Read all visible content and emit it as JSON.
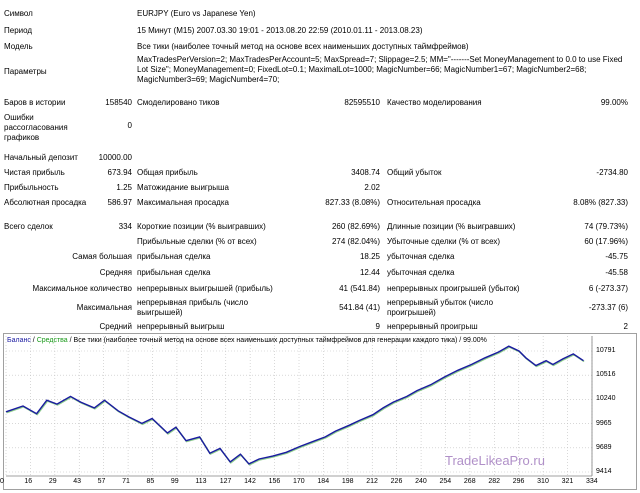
{
  "report": {
    "symbol_label": "Символ",
    "symbol_value": "EURJPY (Euro vs Japanese Yen)",
    "period_label": "Период",
    "period_value": "15 Минут (M15) 2007.03.30 19:01 - 2013.08.20 22:59 (2010.01.11 - 2013.08.23)",
    "model_label": "Модель",
    "model_value": "Все тики (наиболее точный метод на основе всех наименьших доступных таймфреймов)",
    "params_label": "Параметры",
    "params_value": "MaxTradesPerVersion=2; MaxTradesPerAccount=5; MaxSpread=7; Slippage=2.5; MM=\"-------Set MoneyManagement to 0.0 to use Fixed Lot Size\"; MoneyManagement=0; FixedLot=0.1; MaximalLot=1000; MagicNumber=66; MagicNumber1=67; MagicNumber2=68; MagicNumber3=69; MagicNumber4=70;",
    "bars_label": "Баров в истории",
    "bars_value": "158540",
    "ticks_label": "Смоделировано тиков",
    "ticks_value": "82595510",
    "quality_label": "Качество моделирования",
    "quality_value": "99.00%",
    "errors_label": "Ошибки рассогласования графиков",
    "errors_value": "0",
    "deposit_label": "Начальный депозит",
    "deposit_value": "10000.00",
    "net_label": "Чистая прибыль",
    "net_value": "673.94",
    "gross_profit_label": "Общая прибыль",
    "gross_profit_value": "3408.74",
    "gross_loss_label": "Общий убыток",
    "gross_loss_value": "-2734.80",
    "pf_label": "Прибыльность",
    "pf_value": "1.25",
    "payoff_label": "Матожидание выигрыша",
    "payoff_value": "2.02",
    "abs_dd_label": "Абсолютная просадка",
    "abs_dd_value": "586.97",
    "max_dd_label": "Максимальная просадка",
    "max_dd_value": "827.33 (8.08%)",
    "rel_dd_label": "Относительная просадка",
    "rel_dd_value": "8.08% (827.33)",
    "trades_label": "Всего сделок",
    "trades_value": "334",
    "short_label": "Короткие позиции (% выигравших)",
    "short_value": "260 (82.69%)",
    "long_label": "Длинные позиции (% выигравших)",
    "long_value": "74 (79.73%)",
    "profit_trades_label": "Прибыльные сделки (% от всех)",
    "profit_trades_value": "274 (82.04%)",
    "loss_trades_label": "Убыточные сделки (% от всех)",
    "loss_trades_value": "60 (17.96%)",
    "largest_label": "Самая большая",
    "largest_profit_label": "прибыльная сделка",
    "largest_profit_value": "18.25",
    "largest_loss_label": "убыточная сделка",
    "largest_loss_value": "-45.75",
    "average_label": "Средняя",
    "average_profit_label": "прибыльная сделка",
    "average_profit_value": "12.44",
    "average_loss_label": "убыточная сделка",
    "average_loss_value": "-45.58",
    "max_count_label": "Максимальное количество",
    "max_cons_wins_label": "непрерывных выигрышей (прибыль)",
    "max_cons_wins_value": "41 (541.84)",
    "max_cons_losses_label": "непрерывных проигрышей (убыток)",
    "max_cons_losses_value": "6 (-273.37)",
    "maximal_label": "Максимальная",
    "max_cons_profit_label": "непрерывная прибыль (число выигрышей)",
    "max_cons_profit_value": "541.84 (41)",
    "max_cons_loss_label": "непрерывный убыток (число проигрышей)",
    "max_cons_loss_value": "-273.37 (6)",
    "avg_cons_label": "Средний",
    "avg_cons_wins_label": "непрерывный выигрыш",
    "avg_cons_wins_value": "9",
    "avg_cons_losses_label": "непрерывный проигрыш",
    "avg_cons_losses_value": "2"
  },
  "legend": {
    "balance": "Баланс",
    "sep1": " / ",
    "equity": "Средства",
    "rest": " / Все тики (наиболее точный метод на основе всех наименьших доступных таймфреймов для генерации каждого тика) / 99.00%"
  },
  "watermark": "TradeLikeaPro.ru",
  "colors": {
    "balance": "#1a1aa0",
    "equity": "#1a9a1a",
    "grid": "#c0c0c0"
  },
  "chart_data": {
    "type": "line",
    "x_ticks": [
      "0",
      "16",
      "29",
      "43",
      "57",
      "71",
      "85",
      "99",
      "113",
      "127",
      "142",
      "156",
      "170",
      "184",
      "198",
      "212",
      "226",
      "240",
      "254",
      "268",
      "282",
      "296",
      "310",
      "321",
      "334"
    ],
    "y_ticks": [
      "10791",
      "10516",
      "10240",
      "9965",
      "9689",
      "9414"
    ],
    "ylim": [
      9414,
      10866
    ],
    "xlim": [
      0,
      345
    ],
    "series": [
      {
        "name": "Баланс",
        "x": [
          0,
          10,
          18,
          24,
          30,
          38,
          44,
          52,
          58,
          66,
          72,
          80,
          86,
          95,
          100,
          106,
          114,
          120,
          126,
          132,
          138,
          143,
          149,
          157,
          165,
          173,
          182,
          188,
          194,
          202,
          208,
          216,
          222,
          228,
          236,
          242,
          250,
          258,
          266,
          274,
          282,
          290,
          296,
          302,
          306,
          312,
          318,
          322,
          328,
          334,
          340
        ],
        "y": [
          10080,
          10140,
          10060,
          10200,
          10160,
          10240,
          10180,
          10120,
          10200,
          10090,
          10030,
          9960,
          10010,
          9860,
          9920,
          9780,
          9820,
          9650,
          9700,
          9560,
          9640,
          9540,
          9590,
          9620,
          9660,
          9720,
          9780,
          9820,
          9880,
          9940,
          9990,
          10050,
          10120,
          10180,
          10240,
          10300,
          10360,
          10440,
          10510,
          10570,
          10640,
          10700,
          10760,
          10710,
          10640,
          10560,
          10610,
          10570,
          10630,
          10680,
          10610
        ]
      }
    ]
  }
}
